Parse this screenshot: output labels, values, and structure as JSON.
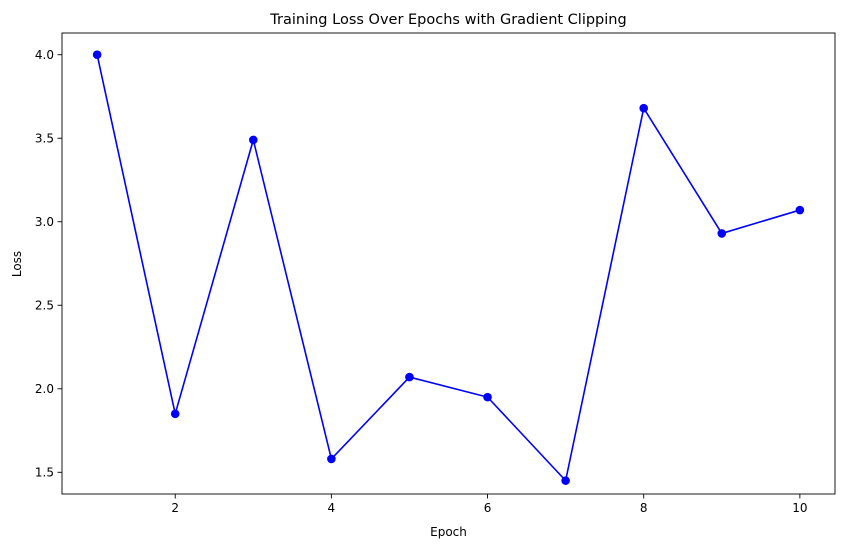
{
  "chart_data": {
    "type": "line",
    "title": "Training Loss Over Epochs with Gradient Clipping",
    "xlabel": "Epoch",
    "ylabel": "Loss",
    "x": [
      1,
      2,
      3,
      4,
      5,
      6,
      7,
      8,
      9,
      10
    ],
    "series": [
      {
        "values": [
          4.0,
          1.85,
          3.49,
          1.58,
          2.07,
          1.95,
          1.45,
          3.68,
          2.93,
          3.07
        ],
        "color": "#0000ff",
        "marker": "circle"
      }
    ],
    "xlim": [
      0.55,
      10.45
    ],
    "ylim": [
      1.37,
      4.13
    ],
    "xticks": [
      2,
      4,
      6,
      8,
      10
    ],
    "yticks": [
      1.5,
      2.0,
      2.5,
      3.0,
      3.5,
      4.0
    ],
    "xtick_labels": [
      "2",
      "4",
      "6",
      "8",
      "10"
    ],
    "ytick_labels": [
      "1.5",
      "2.0",
      "2.5",
      "3.0",
      "3.5",
      "4.0"
    ],
    "grid": false,
    "legend": "none"
  }
}
